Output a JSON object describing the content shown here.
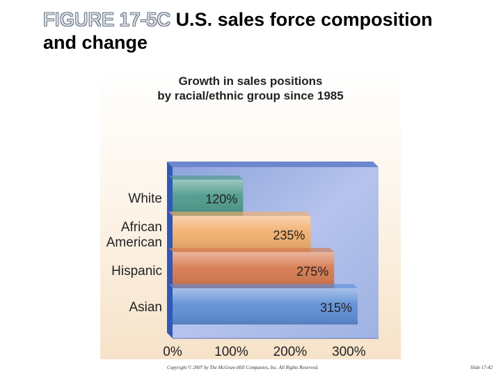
{
  "slide": {
    "figure_label": "FIGURE 17-5C",
    "title_rest": "U.S. sales force composition",
    "title_line2": "and change"
  },
  "chart_data": {
    "type": "bar",
    "orientation": "horizontal",
    "title_line1": "Growth in sales positions",
    "title_line2": "by racial/ethnic group since 1985",
    "categories": [
      {
        "lines": [
          "White"
        ]
      },
      {
        "lines": [
          "African",
          "American"
        ]
      },
      {
        "lines": [
          "Hispanic"
        ]
      },
      {
        "lines": [
          "Asian"
        ]
      }
    ],
    "values": [
      120,
      235,
      275,
      315
    ],
    "value_labels": [
      "120%",
      "235%",
      "275%",
      "315%"
    ],
    "bar_colors": [
      "#4e9a8c",
      "#f2ae6c",
      "#d6794e",
      "#5f8fd6"
    ],
    "xlim": [
      0,
      315
    ],
    "x_ticks": [
      0,
      100,
      200,
      300
    ],
    "x_tick_labels": [
      "0%",
      "100%",
      "200%",
      "300%"
    ],
    "grid": false,
    "background_color": "#a9b9e6"
  },
  "footer": {
    "copyright": "Copyright © 2007 by The McGraw-Hill Companies, Inc. All Rights Reserved.",
    "slide_number": "Slide 17-42"
  }
}
